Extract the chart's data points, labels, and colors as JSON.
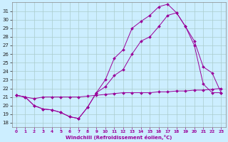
{
  "xlabel": "Windchill (Refroidissement éolien,°C)",
  "bg_color": "#cceeff",
  "grid_color": "#aacccc",
  "line_color": "#990099",
  "xlim": [
    -0.5,
    23.5
  ],
  "ylim": [
    17.5,
    32.0
  ],
  "yticks": [
    18,
    19,
    20,
    21,
    22,
    23,
    24,
    25,
    26,
    27,
    28,
    29,
    30,
    31
  ],
  "xticks": [
    0,
    1,
    2,
    3,
    4,
    5,
    6,
    7,
    8,
    9,
    10,
    11,
    12,
    13,
    14,
    15,
    16,
    17,
    18,
    19,
    20,
    21,
    22,
    23
  ],
  "curve_flat_x": [
    0,
    1,
    2,
    3,
    4,
    5,
    6,
    7,
    8,
    9,
    10,
    11,
    12,
    13,
    14,
    15,
    16,
    17,
    18,
    19,
    20,
    21,
    22,
    23
  ],
  "curve_flat_y": [
    21.2,
    21.0,
    20.8,
    21.0,
    21.0,
    21.0,
    21.0,
    21.0,
    21.1,
    21.2,
    21.3,
    21.4,
    21.5,
    21.5,
    21.5,
    21.5,
    21.6,
    21.6,
    21.7,
    21.7,
    21.8,
    21.8,
    21.9,
    22.0
  ],
  "curve_mid_x": [
    0,
    1,
    2,
    3,
    4,
    5,
    6,
    7,
    8,
    9,
    10,
    11,
    12,
    13,
    14,
    15,
    16,
    17,
    18,
    19,
    20,
    21,
    22,
    23
  ],
  "curve_mid_y": [
    21.2,
    21.0,
    20.0,
    19.6,
    19.5,
    19.2,
    18.7,
    18.5,
    19.8,
    21.5,
    22.2,
    23.5,
    24.2,
    26.0,
    27.5,
    28.0,
    29.2,
    30.5,
    30.8,
    29.2,
    27.0,
    22.5,
    21.5,
    21.5
  ],
  "curve_top_x": [
    0,
    1,
    2,
    3,
    4,
    5,
    6,
    7,
    8,
    9,
    10,
    11,
    12,
    13,
    14,
    15,
    16,
    17,
    18,
    19,
    20,
    21,
    22,
    23
  ],
  "curve_top_y": [
    21.2,
    21.0,
    20.0,
    19.6,
    19.5,
    19.2,
    18.7,
    18.5,
    19.8,
    21.5,
    23.0,
    25.5,
    26.5,
    29.0,
    29.8,
    30.5,
    31.5,
    31.8,
    30.8,
    29.2,
    27.5,
    24.5,
    23.8,
    21.5
  ]
}
